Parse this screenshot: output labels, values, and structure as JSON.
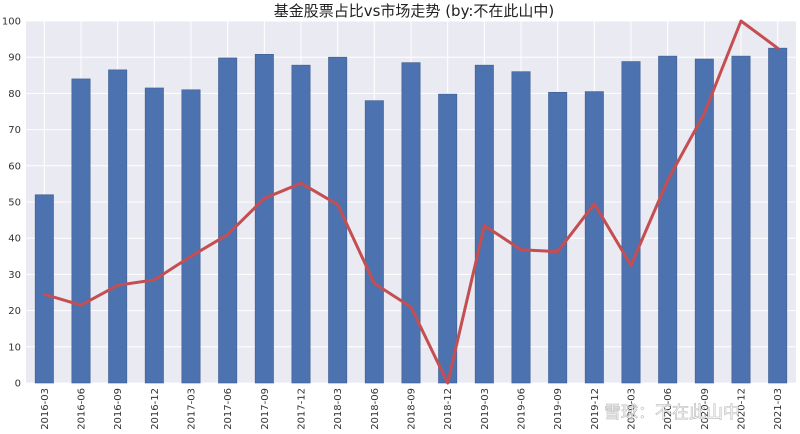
{
  "chart_data": {
    "type": "bar",
    "title": "基金股票占比vs市场走势  (by:不在此山中)",
    "xlabel": "",
    "ylabel": "",
    "ylim": [
      0,
      100
    ],
    "yticks": [
      0,
      10,
      20,
      30,
      40,
      50,
      60,
      70,
      80,
      90,
      100
    ],
    "grid": true,
    "categories": [
      "2016-03",
      "2016-06",
      "2016-09",
      "2016-12",
      "2017-03",
      "2017-06",
      "2017-09",
      "2017-12",
      "2018-03",
      "2018-06",
      "2018-09",
      "2018-12",
      "2019-03",
      "2019-06",
      "2019-09",
      "2019-12",
      "2020-03",
      "2020-06",
      "2020-09",
      "2020-12",
      "2021-03"
    ],
    "series": [
      {
        "type": "bar",
        "color": "#4c72b0",
        "values": [
          52,
          84,
          86.5,
          81.5,
          81,
          89.8,
          90.8,
          87.8,
          90,
          78,
          88.5,
          79.8,
          87.8,
          86,
          80.3,
          80.5,
          88.8,
          90.3,
          89.5,
          90.3,
          92.5
        ]
      },
      {
        "type": "line",
        "color": "#c44e52",
        "values": [
          24.5,
          21.5,
          27,
          28.5,
          35,
          41,
          51,
          55.2,
          49.3,
          27.5,
          21,
          0,
          43.5,
          36.8,
          36.3,
          49.5,
          32.5,
          56,
          74.5,
          100,
          92.5
        ]
      }
    ]
  },
  "watermark": "雪球：不在此山中"
}
